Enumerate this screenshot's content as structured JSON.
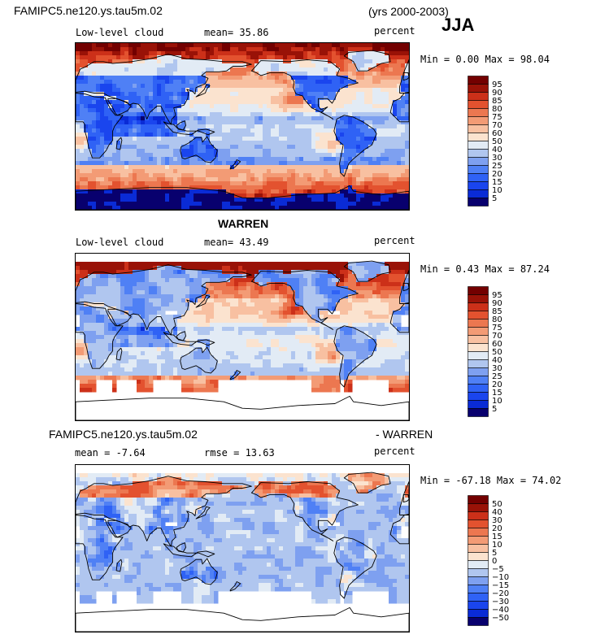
{
  "header": {
    "case_name": "FAMIPC5.ne120.ys.tau5m.02",
    "years": "(yrs 2000-2003)",
    "season": "JJA"
  },
  "panels": [
    {
      "id": "model",
      "title": "",
      "field": "Low-level cloud",
      "stat1": "mean=  35.86",
      "stat2": "",
      "units": "percent",
      "minmax": "Min =   0.00 Max =  98.04",
      "min": 0.0,
      "max": 98.04,
      "mean": 35.86
    },
    {
      "id": "obs",
      "title": "WARREN",
      "field": "Low-level cloud",
      "stat1": "mean=  43.49",
      "stat2": "",
      "units": "percent",
      "minmax": "Min =   0.43 Max =  87.24",
      "min": 0.43,
      "max": 87.24,
      "mean": 43.49
    },
    {
      "id": "diff",
      "title": "FAMIPC5.ne120.ys.tau5m.02",
      "title_right": "- WARREN",
      "field": "",
      "stat1": "mean =  -7.64",
      "stat2": "rmse =  13.63",
      "units": "percent",
      "minmax": "Min = -67.18 Max =  74.02",
      "min": -67.18,
      "max": 74.02,
      "mean": -7.64,
      "rmse": 13.63
    }
  ],
  "chart_data": [
    {
      "type": "heatmap",
      "title": "Low-level cloud (FAMIPC5.ne120.ys.tau5m.02, JJA, yrs 2000-2003)",
      "units": "percent",
      "mean": 35.86,
      "min": 0.0,
      "max": 98.04,
      "colorbar_levels": [
        5,
        10,
        15,
        20,
        25,
        30,
        40,
        50,
        60,
        70,
        75,
        80,
        85,
        90,
        95
      ],
      "colorbar_labels": [
        "95",
        "90",
        "85",
        "80",
        "75",
        "70",
        "60",
        "50",
        "40",
        "30",
        "25",
        "20",
        "15",
        "10",
        "5"
      ]
    },
    {
      "type": "heatmap",
      "title": "Low-level cloud (WARREN, JJA)",
      "units": "percent",
      "mean": 43.49,
      "min": 0.43,
      "max": 87.24,
      "colorbar_levels": [
        5,
        10,
        15,
        20,
        25,
        30,
        40,
        50,
        60,
        70,
        75,
        80,
        85,
        90,
        95
      ],
      "colorbar_labels": [
        "95",
        "90",
        "85",
        "80",
        "75",
        "70",
        "60",
        "50",
        "40",
        "30",
        "25",
        "20",
        "15",
        "10",
        "5"
      ]
    },
    {
      "type": "heatmap",
      "title": "Low-level cloud difference (FAMIPC5.ne120.ys.tau5m.02 - WARREN, JJA)",
      "units": "percent",
      "mean": -7.64,
      "rmse": 13.63,
      "min": -67.18,
      "max": 74.02,
      "colorbar_levels": [
        -50,
        -40,
        -30,
        -20,
        -15,
        -10,
        -5,
        0,
        5,
        10,
        15,
        20,
        30,
        40,
        50
      ],
      "colorbar_labels": [
        "50",
        "40",
        "30",
        "20",
        "15",
        "10",
        "5",
        "0",
        "−5",
        "−10",
        "−15",
        "−20",
        "−30",
        "−40",
        "−50"
      ]
    }
  ],
  "colors": {
    "scale": [
      "#08006e",
      "#0a2bd6",
      "#1a45ee",
      "#2f62f5",
      "#4f80f5",
      "#7ea0f0",
      "#b0c6ef",
      "#e2ebf5",
      "#fbe3cf",
      "#f8c0a1",
      "#f39b75",
      "#ec7750",
      "#e3522f",
      "#cc3019",
      "#991207",
      "#730000"
    ]
  }
}
